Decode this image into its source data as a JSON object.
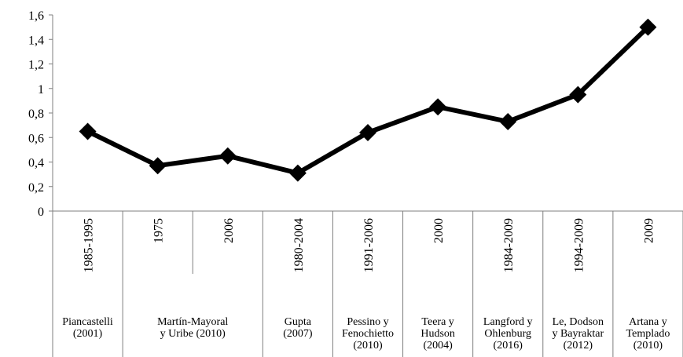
{
  "chart_data": {
    "type": "line",
    "title": "",
    "xlabel": "",
    "ylabel": "",
    "ylim": [
      0,
      1.6
    ],
    "ytick_step": 0.2,
    "yticks": [
      "0",
      "0,2",
      "0,4",
      "0,6",
      "0,8",
      "1",
      "1,2",
      "1,4",
      "1,6"
    ],
    "grid": false,
    "legend": "none",
    "categories": [
      {
        "period": "1985-1995",
        "author": [
          "Piancastelli",
          "(2001)"
        ]
      },
      {
        "period": "1975",
        "author": [
          "Martín-Mayoral",
          "y Uribe (2010)"
        ]
      },
      {
        "period": "2006",
        "author": []
      },
      {
        "period": "1980-2004",
        "author": [
          "Gupta",
          "(2007)"
        ]
      },
      {
        "period": "1991-2006",
        "author": [
          "Pessino y",
          "Fenochietto",
          "(2010)"
        ]
      },
      {
        "period": "2000",
        "author": [
          "Teera y",
          "Hudson",
          "(2004)"
        ]
      },
      {
        "period": "1984-2009",
        "author": [
          "Langford y",
          "Ohlenburg",
          "(2016)"
        ]
      },
      {
        "period": "1994-2009",
        "author": [
          "Le, Dodson",
          "y Bayraktar",
          "(2012)"
        ]
      },
      {
        "period": "2009",
        "author": [
          "Artana y",
          "Templado",
          "(2010)"
        ]
      }
    ],
    "series": [
      {
        "values": [
          0.65,
          0.37,
          0.45,
          0.31,
          0.64,
          0.85,
          0.73,
          0.95,
          1.5
        ]
      }
    ],
    "colors": {
      "line": "#000000",
      "axis": "#7f7f7f"
    }
  }
}
